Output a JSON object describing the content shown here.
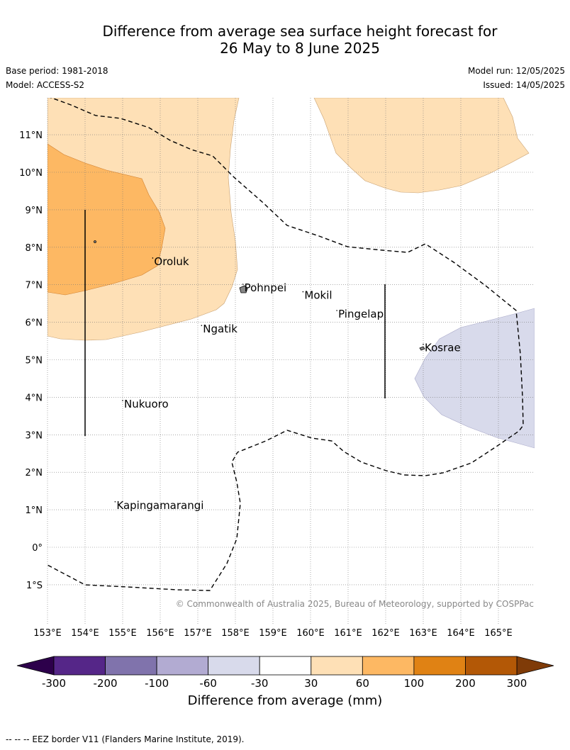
{
  "title_line1": "Difference from average sea surface height forecast for",
  "title_line2": "26 May to 8 June 2025",
  "base_period": "Base period: 1981-2018",
  "model": "Model: ACCESS-S2",
  "model_run": "Model run: 12/05/2025",
  "issued": "Issued: 14/05/2025",
  "copyright": "© Commonwealth of Australia 2025, Bureau of Meteorology, supported by COSPPac",
  "lon_ticks": [
    "153°E",
    "154°E",
    "155°E",
    "156°E",
    "157°E",
    "158°E",
    "159°E",
    "160°E",
    "161°E",
    "162°E",
    "163°E",
    "164°E",
    "165°E"
  ],
  "lat_ticks": [
    "11°N",
    "10°N",
    "9°N",
    "8°N",
    "7°N",
    "6°N",
    "5°N",
    "4°N",
    "3°N",
    "2°N",
    "1°N",
    "0°",
    "1°S"
  ],
  "places": [
    {
      "name": "Oroluk",
      "lon": 155.8,
      "lat": 7.6
    },
    {
      "name": "Pohnpei",
      "lon": 158.2,
      "lat": 6.9
    },
    {
      "name": "Mokil",
      "lon": 159.8,
      "lat": 6.7
    },
    {
      "name": "Pingelap",
      "lon": 160.7,
      "lat": 6.2
    },
    {
      "name": "Ngatik",
      "lon": 157.1,
      "lat": 5.8
    },
    {
      "name": "Kosrae",
      "lon": 163.0,
      "lat": 5.3
    },
    {
      "name": "Nukuoro",
      "lon": 155.0,
      "lat": 3.8
    },
    {
      "name": "Kapingamarangi",
      "lon": 154.8,
      "lat": 1.1
    }
  ],
  "colorbar": {
    "title": "Difference from average (mm)",
    "labels": [
      "-300",
      "-200",
      "-100",
      "-60",
      "-30",
      "30",
      "60",
      "100",
      "200",
      "300"
    ],
    "colors": [
      "#552688",
      "#8073ac",
      "#b2abd2",
      "#d8daeb",
      "#ffffff",
      "#fee0b6",
      "#fdb863",
      "#e08214",
      "#b35806"
    ],
    "under_color": "#2d004b",
    "over_color": "#7f3b08"
  },
  "footnote": "--  --  -- EEZ border V11 (Flanders Marine Institute, 2019).",
  "map_colors": {
    "light_orange": "#fee0b6",
    "orange": "#fdb863",
    "lavender": "#d8daeb"
  }
}
